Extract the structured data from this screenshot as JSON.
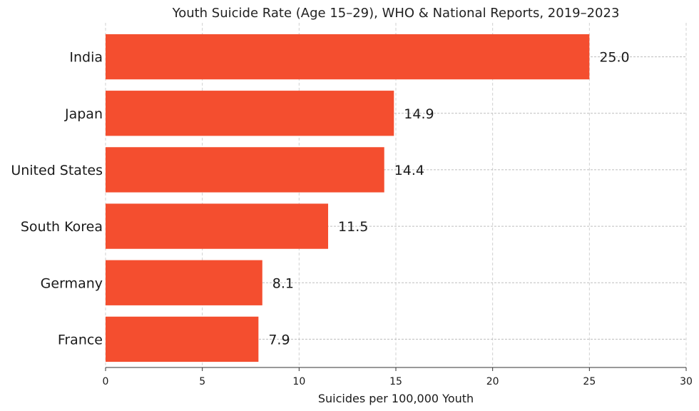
{
  "chart_data": {
    "type": "bar",
    "orientation": "horizontal",
    "title": "Youth Suicide Rate (Age 15–29), WHO & National Reports, 2019–2023",
    "xlabel": "Suicides per 100,000 Youth",
    "ylabel": "",
    "categories": [
      "India",
      "Japan",
      "United States",
      "South Korea",
      "Germany",
      "France"
    ],
    "values": [
      25.0,
      14.9,
      14.4,
      11.5,
      8.1,
      7.9
    ],
    "value_labels": [
      "25.0",
      "14.9",
      "14.4",
      "11.5",
      "8.1",
      "7.9"
    ],
    "xlim": [
      0,
      30
    ],
    "xticks": [
      0,
      5,
      10,
      15,
      20,
      25,
      30
    ],
    "grid": true,
    "bar_color": "#f44e2f"
  }
}
